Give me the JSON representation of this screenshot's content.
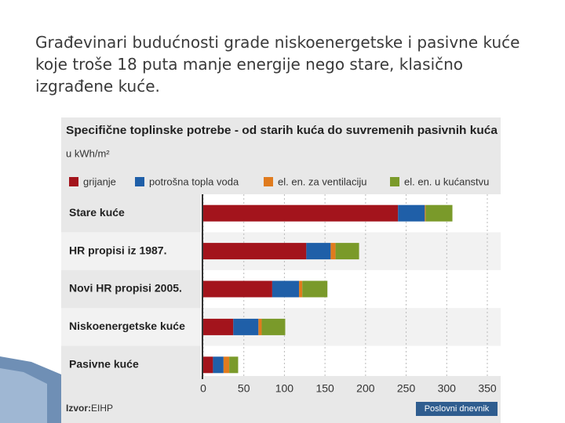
{
  "slide_text": "Građevinari budućnosti grade niskoenergetske i pasivne kuće koje troše 18 puta manje energije nego stare, klasično izgrađene kuće.",
  "chart_data": {
    "type": "stacked-bar-horizontal",
    "title": "Specifične toplinske potrebe - od starih kuća do suvremenih pasivnih kuća",
    "subtitle": "u kWh/m²",
    "categories": [
      "Stare kuće",
      "HR propisi iz 1987.",
      "Novi HR propisi 2005.",
      "Niskoenergetske kuće",
      "Pasivne kuće"
    ],
    "series": [
      {
        "name": "grijanje",
        "color": "#a3141c",
        "values": [
          240,
          127,
          85,
          37,
          12
        ]
      },
      {
        "name": "potrošna topla voda",
        "color": "#1f5fa8",
        "values": [
          33,
          30,
          33,
          31,
          13
        ]
      },
      {
        "name": "el. en. za ventilaciju",
        "color": "#e07b1e",
        "values": [
          1,
          6,
          4,
          4,
          7
        ]
      },
      {
        "name": "el. en. u kućanstvu",
        "color": "#7a9a2a",
        "values": [
          33,
          29,
          31,
          29,
          11
        ]
      }
    ],
    "xlim": [
      0,
      350
    ],
    "xticks": [
      0,
      50,
      100,
      150,
      200,
      250,
      300,
      350
    ],
    "grid": true,
    "source_label": "Izvor:",
    "source": "EIHP",
    "publisher": "Poslovni dnevnik"
  }
}
